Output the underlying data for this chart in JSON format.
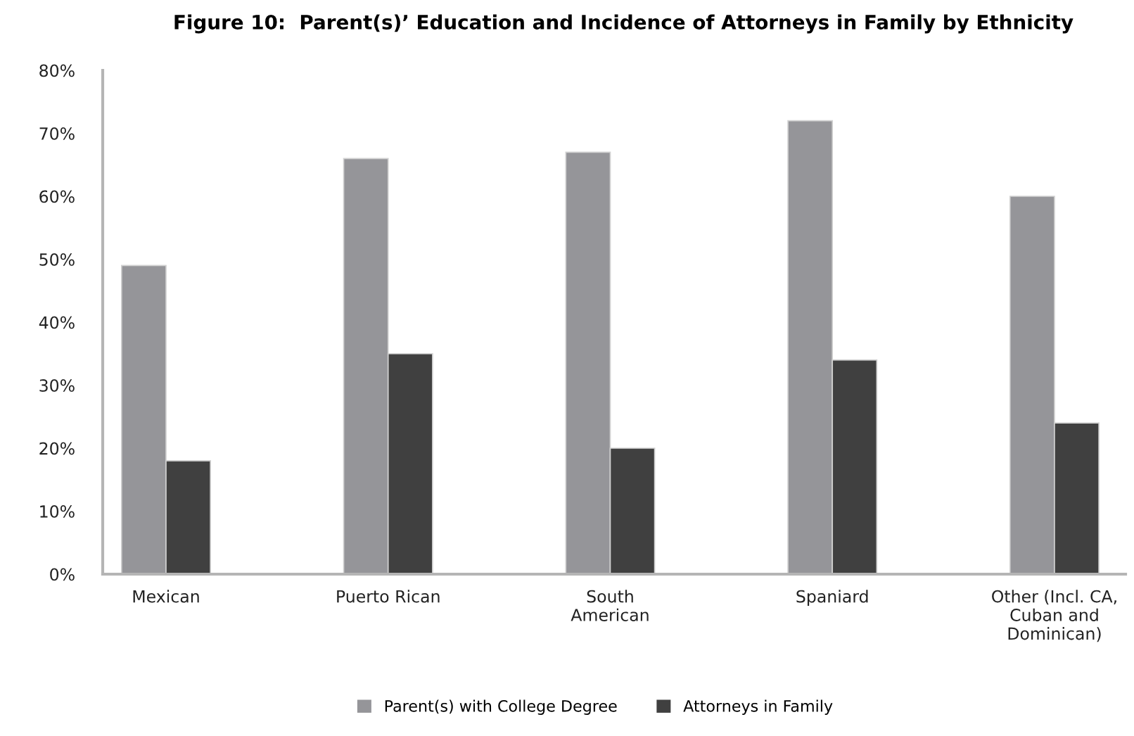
{
  "chart_data": {
    "type": "bar",
    "title": "Figure 10:  Parent(s)’ Education and Incidence of Attorneys in Family by Ethnicity",
    "categories": [
      "Mexican",
      "Puerto Rican",
      "South\nAmerican",
      "Spaniard",
      "Other (Incl. CA,\nCuban and\nDominican)"
    ],
    "series": [
      {
        "name": "Parent(s) with College Degree",
        "color": "#959599",
        "values": [
          49,
          66,
          67,
          72,
          60
        ]
      },
      {
        "name": "Attorneys in Family",
        "color": "#404040",
        "values": [
          18,
          35,
          20,
          34,
          24
        ]
      }
    ],
    "ylim": [
      0,
      80
    ],
    "yticks": [
      {
        "value": 0,
        "label": "0%"
      },
      {
        "value": 10,
        "label": "10%"
      },
      {
        "value": 20,
        "label": "20%"
      },
      {
        "value": 30,
        "label": "30%"
      },
      {
        "value": 40,
        "label": "40%"
      },
      {
        "value": 50,
        "label": "50%"
      },
      {
        "value": 60,
        "label": "60%"
      },
      {
        "value": 70,
        "label": "70%"
      },
      {
        "value": 80,
        "label": "80%"
      }
    ],
    "grid": false,
    "legend": "bottom"
  }
}
